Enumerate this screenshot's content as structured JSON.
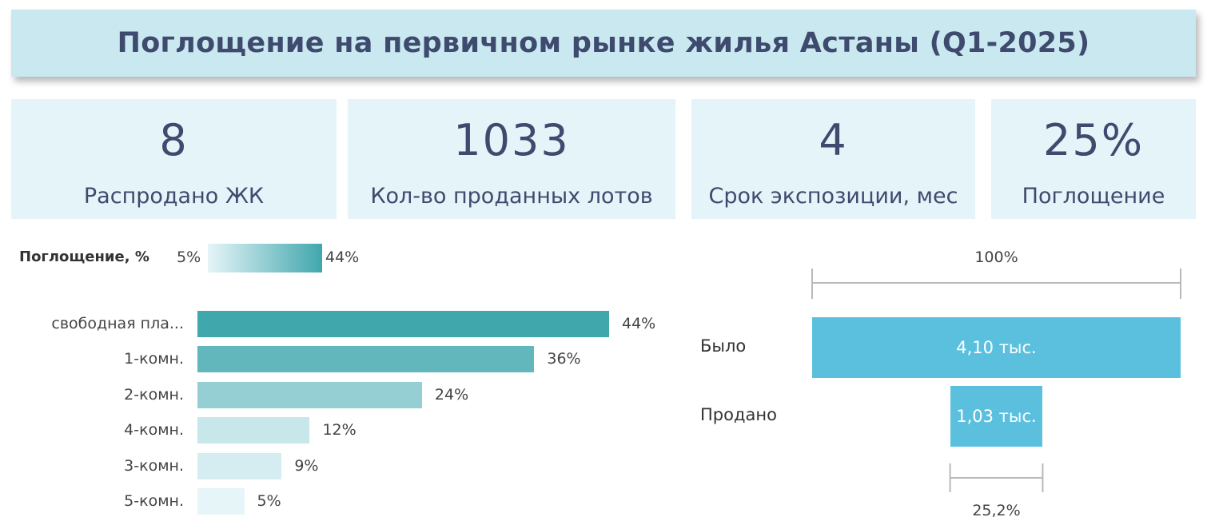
{
  "title": "Поглощение на первичном рынке жилья Астаны (Q1-2025)",
  "kpis": [
    {
      "value": "8",
      "label": "Распродано ЖК"
    },
    {
      "value": "1033",
      "label": "Кол-во проданных лотов"
    },
    {
      "value": "4",
      "label": "Срок экспозиции, мес"
    },
    {
      "value": "25%",
      "label": "Поглощение"
    }
  ],
  "legend": {
    "title": "Поглощение, %",
    "min": "5%",
    "max": "44%"
  },
  "chart_data": [
    {
      "type": "bar",
      "orientation": "horizontal",
      "categories": [
        "свободная пла...",
        "1-комн.",
        "2-комн.",
        "4-комн.",
        "3-комн.",
        "5-комн."
      ],
      "values": [
        44,
        36,
        24,
        12,
        9,
        5
      ],
      "value_labels": [
        "44%",
        "36%",
        "24%",
        "12%",
        "9%",
        "5%"
      ],
      "color_scale": {
        "min_color": "#e6f5f8",
        "max_color": "#40a7ad",
        "min": 5,
        "max": 44
      }
    },
    {
      "type": "funnel",
      "stages": [
        {
          "label": "Было",
          "value": 4100,
          "value_label": "4,10 тыс."
        },
        {
          "label": "Продано",
          "value": 1030,
          "value_label": "1,03 тыс."
        }
      ],
      "top_annotation": "100%",
      "bottom_annotation": "25,2%",
      "color": "#5bc0de"
    }
  ]
}
